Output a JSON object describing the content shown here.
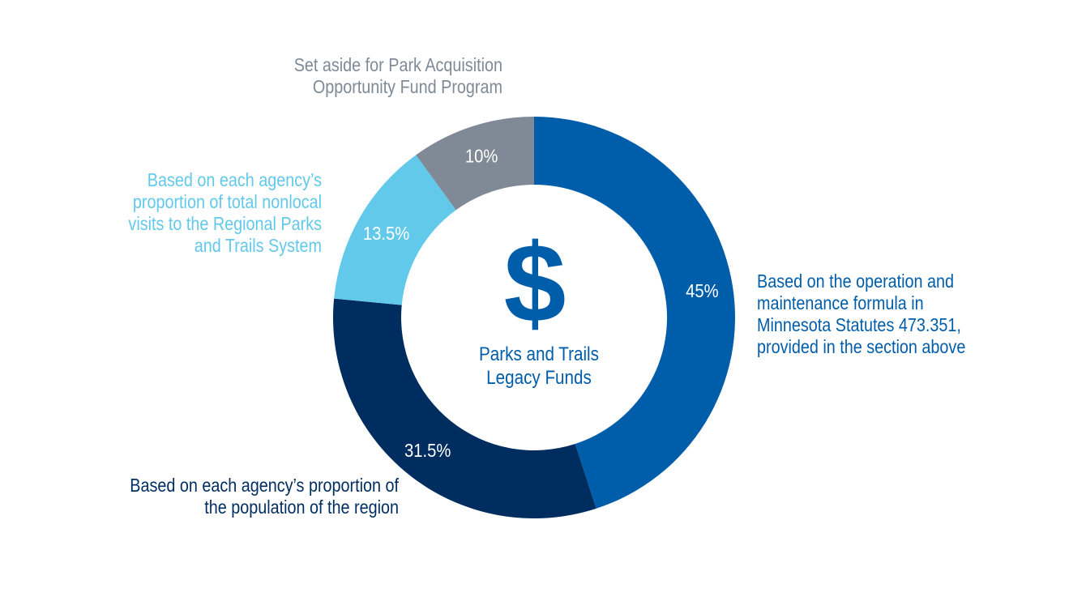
{
  "chart_data": {
    "type": "pie",
    "style": "donut",
    "start_angle_deg": 0,
    "direction": "clockwise",
    "slices": [
      {
        "label": "Based on the operation and maintenance formula in Minnesota Statutes 473.351, provided in the section above",
        "value": 45,
        "value_label": "45%",
        "color": "#005DAA"
      },
      {
        "label": "Based on each agency’s proportion of the population of the region",
        "value": 31.5,
        "value_label": "31.5%",
        "color": "#002D5F"
      },
      {
        "label": "Based on each agency’s proportion of total nonlocal visits to the Regional Parks and Trails System",
        "value": 13.5,
        "value_label": "13.5%",
        "color": "#62C9EA"
      },
      {
        "label": "Set aside for Park Acquisition Opportunity Fund Program",
        "value": 10,
        "value_label": "10%",
        "color": "#7F8A96"
      }
    ],
    "center": {
      "symbol": "$",
      "title_lines": [
        "Parks and Trails",
        "Legacy Funds"
      ],
      "color": "#005DAA"
    }
  },
  "callouts": {
    "aside": {
      "lines": [
        "Set aside for Park Acquisition",
        "Opportunity Fund Program"
      ],
      "color": "#7F8A96"
    },
    "visits": {
      "lines": [
        "Based on each agency’s",
        "proportion of total nonlocal",
        "visits to the Regional Parks",
        "and Trails System"
      ],
      "color": "#62C9EA"
    },
    "population": {
      "lines": [
        "Based on each agency’s proportion of",
        "the population of the region"
      ],
      "color": "#002D5F"
    },
    "om": {
      "lines": [
        "Based on the operation and",
        "maintenance formula in",
        "Minnesota Statutes 473.351,",
        "provided in the section above"
      ],
      "color": "#005DAA"
    }
  }
}
